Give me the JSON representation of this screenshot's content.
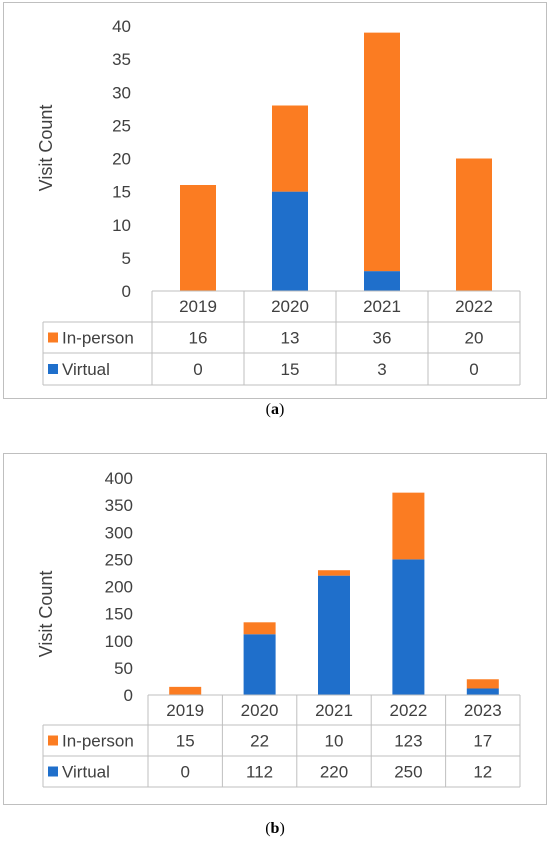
{
  "panels": [
    {
      "label": "a",
      "caption_open": "(",
      "caption_close": ")"
    },
    {
      "label": "b",
      "caption_open": "(",
      "caption_close": ")"
    }
  ],
  "colors": {
    "in_person": "#fb7c22",
    "virtual": "#1f6fcb",
    "text": "#404040",
    "grid": "#bfbfbf"
  },
  "chart_data": [
    {
      "type": "bar",
      "stacked": true,
      "ylabel": "Visit Count",
      "ylim": [
        0,
        40
      ],
      "yticks": [
        0,
        5,
        10,
        15,
        20,
        25,
        30,
        35,
        40
      ],
      "categories": [
        "2019",
        "2020",
        "2021",
        "2022"
      ],
      "series": [
        {
          "name": "In-person",
          "values": [
            16,
            13,
            36,
            20
          ]
        },
        {
          "name": "Virtual",
          "values": [
            0,
            15,
            3,
            0
          ]
        }
      ],
      "data_table": true,
      "grid": false
    },
    {
      "type": "bar",
      "stacked": true,
      "ylabel": "Visit Count",
      "ylim": [
        0,
        400
      ],
      "yticks": [
        0,
        50,
        100,
        150,
        200,
        250,
        300,
        350,
        400
      ],
      "categories": [
        "2019",
        "2020",
        "2021",
        "2022",
        "2023"
      ],
      "series": [
        {
          "name": "In-person",
          "values": [
            15,
            22,
            10,
            123,
            17
          ]
        },
        {
          "name": "Virtual",
          "values": [
            0,
            112,
            220,
            250,
            12
          ]
        }
      ],
      "data_table": true,
      "grid": false
    }
  ]
}
